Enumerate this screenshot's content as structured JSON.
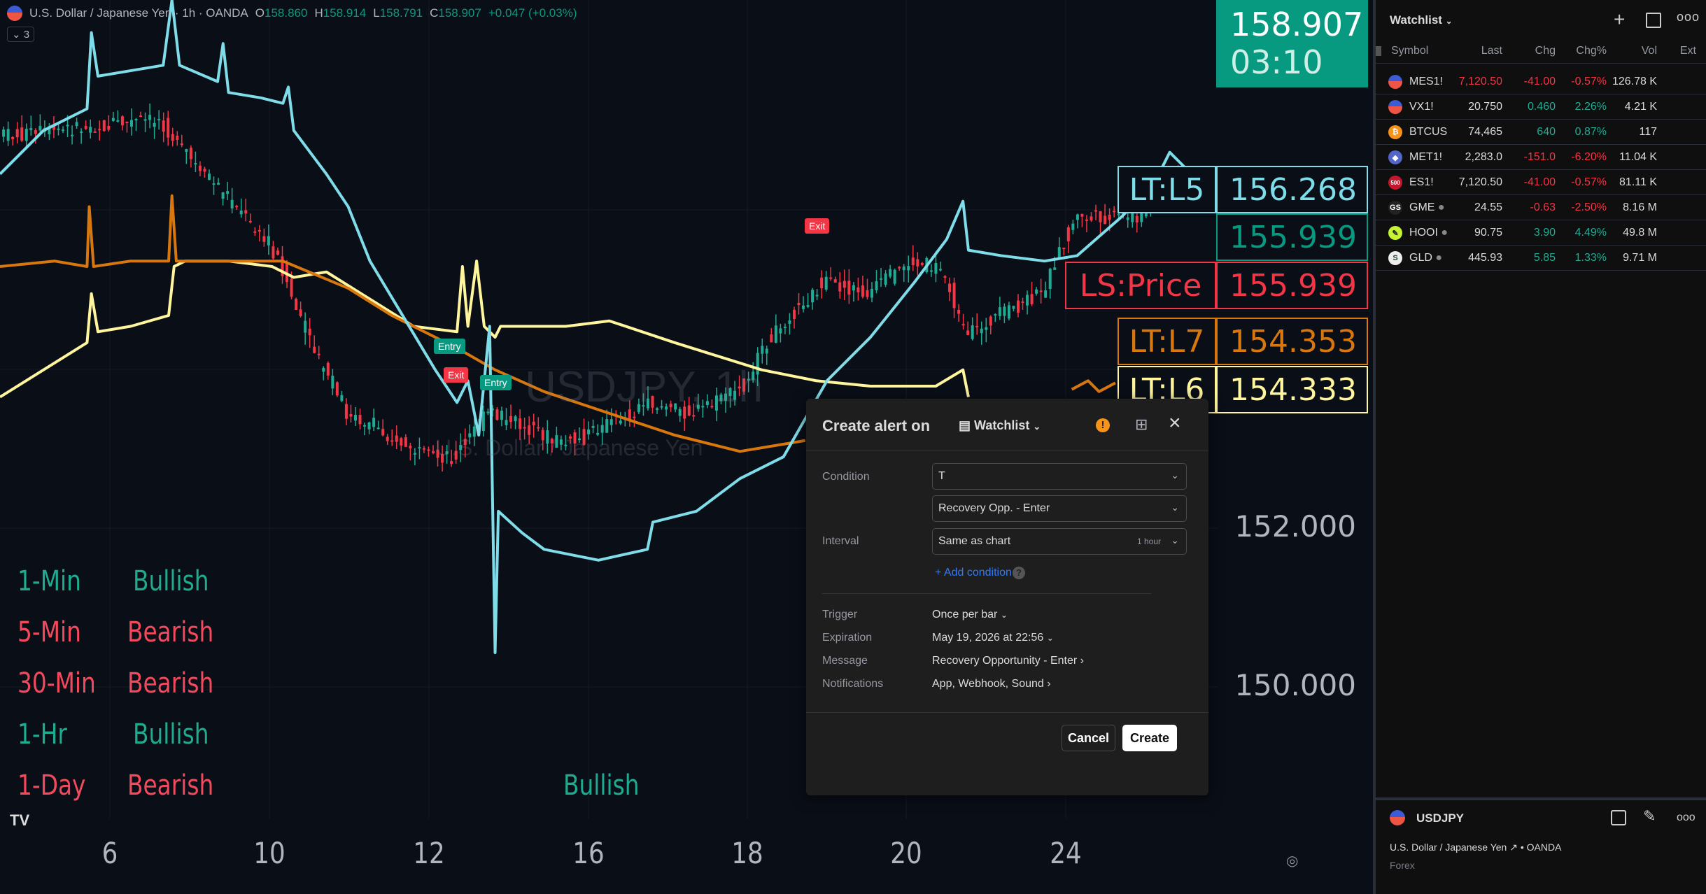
{
  "legend": {
    "title": "U.S. Dollar / Japanese Yen · 1h · OANDA",
    "o_label": "O",
    "o": "158.860",
    "h_label": "H",
    "h": "158.914",
    "l_label": "L",
    "l": "158.791",
    "c_label": "C",
    "c": "158.907",
    "change": "+0.047 (+0.03%)",
    "collapsed_count": "3"
  },
  "watermark": {
    "symbol": "USDJPY, 1h",
    "name": "U.S. Dollar / Japanese Yen"
  },
  "signals": [
    {
      "tf": "1-Min",
      "state": "Bullish"
    },
    {
      "tf": "5-Min",
      "state": "Bearish"
    },
    {
      "tf": "30-Min",
      "state": "Bearish"
    },
    {
      "tf": "1-Hr",
      "state": "Bullish"
    },
    {
      "tf": "1-Day",
      "state": "Bearish"
    }
  ],
  "extra_signal": "Bullish",
  "markers": {
    "exit": "Exit",
    "entry": "Entry"
  },
  "x_ticks": [
    "6",
    "10",
    "12",
    "16",
    "18",
    "20",
    "24"
  ],
  "y_ticks": [
    "152.000",
    "150.000"
  ],
  "last_price": {
    "value": "158.907",
    "countdown": "03:10",
    "color": "#089981"
  },
  "price_labels": [
    {
      "label": "LT:L5",
      "value": "156.268",
      "color": "#7fdde9"
    },
    {
      "label": "",
      "value": "155.939",
      "color": "#089981"
    },
    {
      "label": "LS:Price",
      "value": "155.939",
      "color": "#f23645"
    },
    {
      "label": "LT:L7",
      "value": "154.353",
      "color": "#d9770f"
    },
    {
      "label": "LT:L6",
      "value": "154.333",
      "color": "#fff59d"
    }
  ],
  "watchlist": {
    "title": "Watchlist",
    "columns": [
      "Symbol",
      "Last",
      "Chg",
      "Chg%",
      "Vol",
      "Ext"
    ],
    "rows": [
      {
        "symbol": "MES1!",
        "last": "7,120.50",
        "chg": "-41.00",
        "chgp": "-0.57%",
        "vol": "126.78 K",
        "dir": "down",
        "icon": "us-flag"
      },
      {
        "symbol": "VX1!",
        "last": "20.750",
        "chg": "0.460",
        "chgp": "2.26%",
        "vol": "4.21 K",
        "dir": "up",
        "icon": "us-flag"
      },
      {
        "symbol": "BTCUS",
        "last": "74,465",
        "chg": "640",
        "chgp": "0.87%",
        "vol": "117",
        "dir": "up",
        "icon": "bitcoin"
      },
      {
        "symbol": "MET1!",
        "last": "2,283.0",
        "chg": "-151.0",
        "chgp": "-6.20%",
        "vol": "11.04 K",
        "dir": "down",
        "icon": "ethereum"
      },
      {
        "symbol": "ES1!",
        "last": "7,120.50",
        "chg": "-41.00",
        "chgp": "-0.57%",
        "vol": "81.11 K",
        "dir": "down",
        "icon": "sp500"
      },
      {
        "symbol": "GME",
        "last": "24.55",
        "chg": "-0.63",
        "chgp": "-2.50%",
        "vol": "8.16 M",
        "dir": "down",
        "icon": "gme"
      },
      {
        "symbol": "HOOI",
        "last": "90.75",
        "chg": "3.90",
        "chgp": "4.49%",
        "vol": "49.8 M",
        "dir": "up",
        "icon": "robinhood"
      },
      {
        "symbol": "GLD",
        "last": "445.93",
        "chg": "5.85",
        "chgp": "1.33%",
        "vol": "9.71 M",
        "dir": "up",
        "icon": "spdr"
      }
    ]
  },
  "details": {
    "symbol": "USDJPY",
    "name": "U.S. Dollar / Japanese Yen",
    "exchange": "OANDA",
    "type": "Forex"
  },
  "alert": {
    "title": "Create alert on",
    "target": "Watchlist",
    "condition_label": "Condition",
    "condition_1": "T",
    "condition_2": "Recovery Opp. - Enter",
    "interval_label": "Interval",
    "interval": "Same as chart",
    "interval_hint": "1 hour",
    "add_condition": "Add condition",
    "trigger_label": "Trigger",
    "trigger": "Once per bar",
    "expiration_label": "Expiration",
    "expiration": "May 19, 2026 at 22:56",
    "message_label": "Message",
    "message": "Recovery Opportunity - Enter",
    "notifications_label": "Notifications",
    "notifications": "App, Webhook, Sound",
    "cancel": "Cancel",
    "create": "Create"
  }
}
